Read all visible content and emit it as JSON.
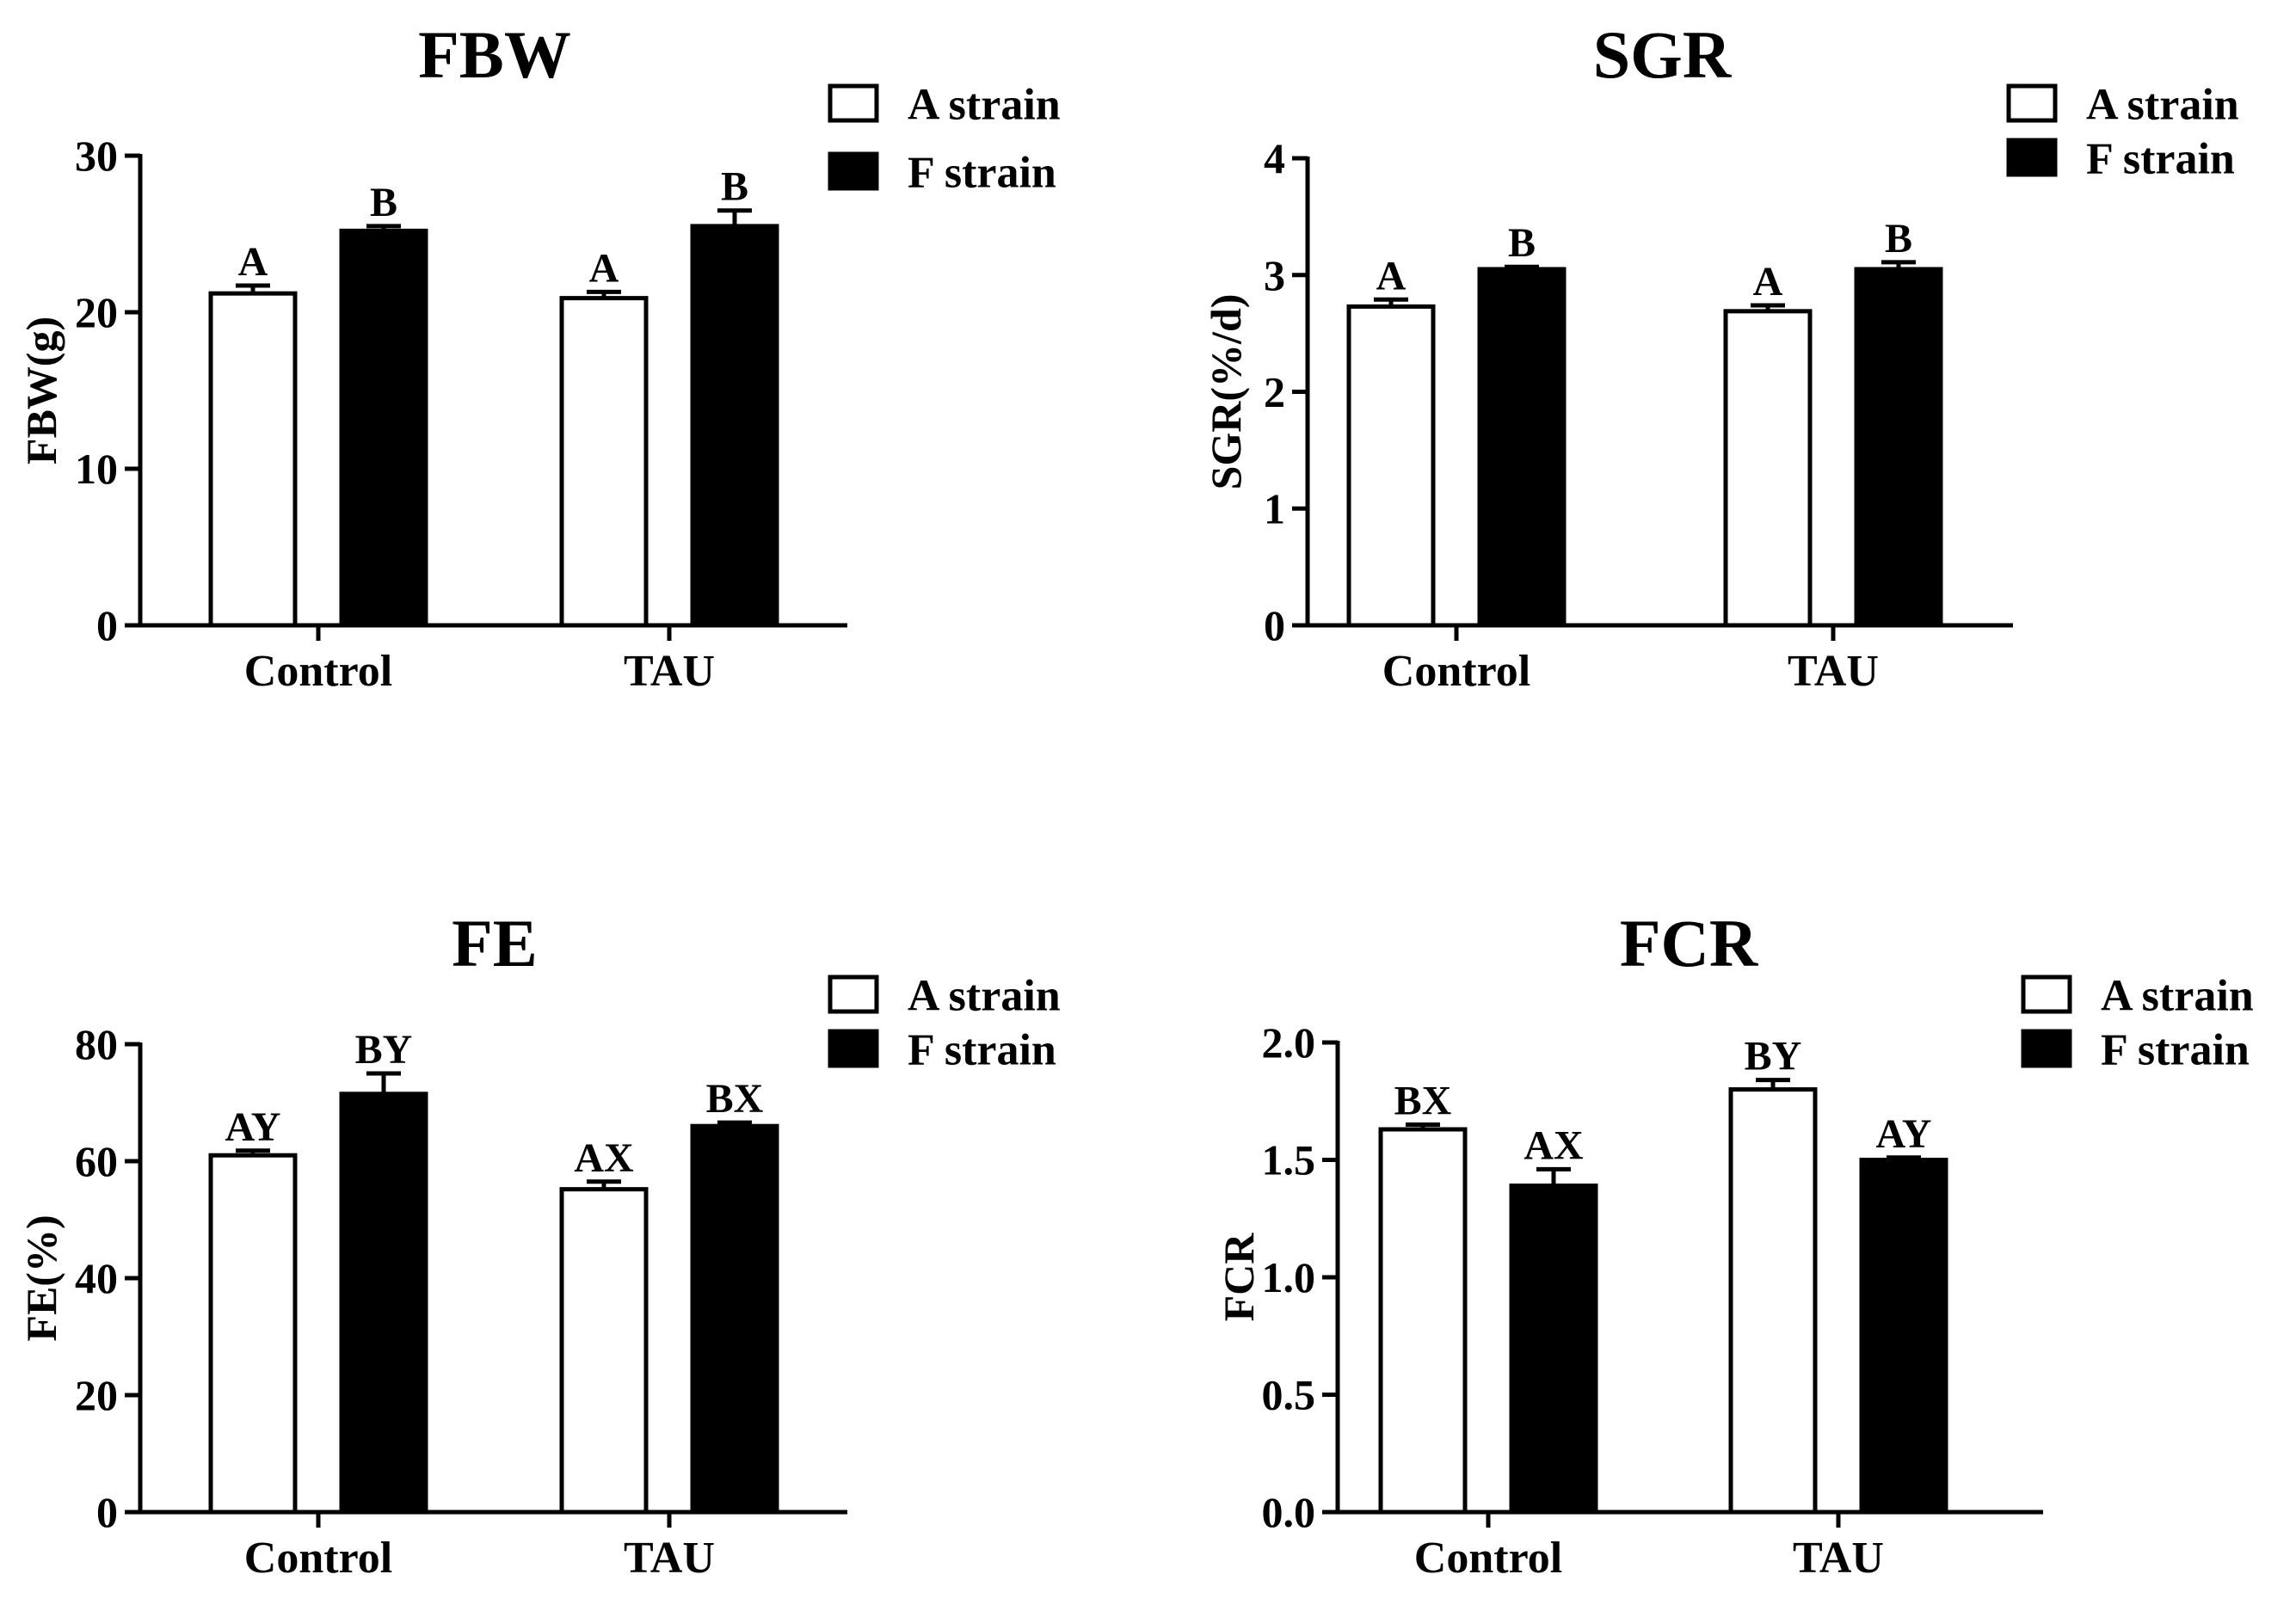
{
  "chart_data": [
    {
      "type": "bar",
      "title": "FBW",
      "ylabel": "FBW(g)",
      "xlabel": "",
      "categories": [
        "Control",
        "TAU"
      ],
      "ylim": [
        0,
        30
      ],
      "yticks": [
        0,
        10,
        20,
        30
      ],
      "ytick_labels": [
        "0",
        "10",
        "20",
        "30"
      ],
      "series": [
        {
          "name": "A strain",
          "fill": "#ffffff",
          "values": [
            21.2,
            20.9
          ],
          "errors": [
            0.5,
            0.4
          ],
          "labels": [
            "A",
            "A"
          ]
        },
        {
          "name": "F strain",
          "fill": "#000000",
          "values": [
            25.2,
            25.5
          ],
          "errors": [
            0.3,
            1.0
          ],
          "labels": [
            "B",
            "B"
          ]
        }
      ],
      "legend": "top-right"
    },
    {
      "type": "bar",
      "title": "SGR",
      "ylabel": "SGR(%/d)",
      "xlabel": "",
      "categories": [
        "Control",
        "TAU"
      ],
      "ylim": [
        0,
        4
      ],
      "yticks": [
        0,
        1,
        2,
        3,
        4
      ],
      "ytick_labels": [
        "0",
        "1",
        "2",
        "3",
        "4"
      ],
      "series": [
        {
          "name": "A strain",
          "fill": "#ffffff",
          "values": [
            2.73,
            2.69
          ],
          "errors": [
            0.06,
            0.05
          ],
          "labels": [
            "A",
            "A"
          ]
        },
        {
          "name": "F strain",
          "fill": "#000000",
          "values": [
            3.05,
            3.05
          ],
          "errors": [
            0.02,
            0.06
          ],
          "labels": [
            "B",
            "B"
          ]
        }
      ],
      "legend": "top-right"
    },
    {
      "type": "bar",
      "title": "FE",
      "ylabel": "FE(%)",
      "xlabel": "",
      "categories": [
        "Control",
        "TAU"
      ],
      "ylim": [
        0,
        80
      ],
      "yticks": [
        0,
        20,
        40,
        60,
        80
      ],
      "ytick_labels": [
        "0",
        "20",
        "40",
        "60",
        "80"
      ],
      "series": [
        {
          "name": "A strain",
          "fill": "#ffffff",
          "values": [
            61,
            55.2
          ],
          "errors": [
            0.8,
            1.3
          ],
          "labels": [
            "AY",
            "AX"
          ]
        },
        {
          "name": "F strain",
          "fill": "#000000",
          "values": [
            71.5,
            66
          ],
          "errors": [
            3.5,
            0.6
          ],
          "labels": [
            "BY",
            "BX"
          ]
        }
      ],
      "legend": "top-right"
    },
    {
      "type": "bar",
      "title": "FCR",
      "ylabel": "FCR",
      "xlabel": "",
      "categories": [
        "Control",
        "TAU"
      ],
      "ylim": [
        0,
        2
      ],
      "yticks": [
        0,
        0.5,
        1,
        1.5,
        2
      ],
      "ytick_labels": [
        "0.0",
        "0.5",
        "1.0",
        "1.5",
        "2.0"
      ],
      "series": [
        {
          "name": "A strain",
          "fill": "#ffffff",
          "values": [
            1.63,
            1.8
          ],
          "errors": [
            0.02,
            0.04
          ],
          "labels": [
            "BX",
            "BY"
          ]
        },
        {
          "name": "F strain",
          "fill": "#000000",
          "values": [
            1.39,
            1.5
          ],
          "errors": [
            0.07,
            0.01
          ],
          "labels": [
            "AX",
            "AY"
          ]
        }
      ],
      "legend": "top-right"
    }
  ]
}
